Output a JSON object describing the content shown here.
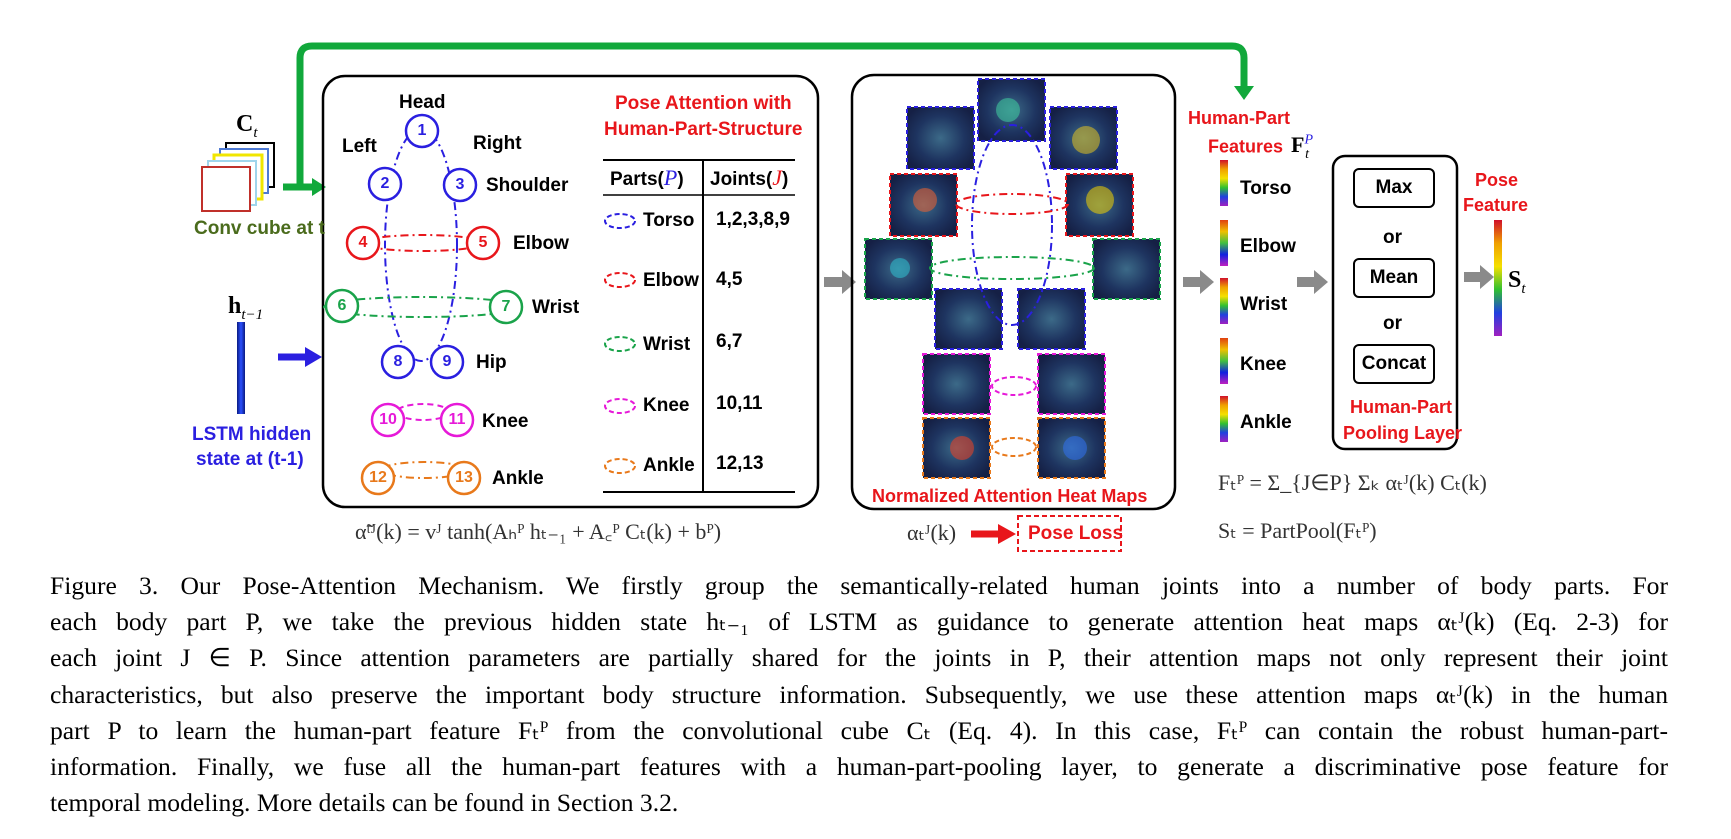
{
  "inputs": {
    "conv_cube_symbol": "C",
    "conv_cube_sub": "t",
    "conv_cube_label": "Conv cube at t",
    "hidden_symbol": "h",
    "hidden_sub": "t−1",
    "hidden_label_line1": "LSTM hidden",
    "hidden_label_line2": "state at (t-1)"
  },
  "skeleton": {
    "head": "Head",
    "left": "Left",
    "right": "Right",
    "joints": [
      "1",
      "2",
      "3",
      "4",
      "5",
      "6",
      "7",
      "8",
      "9",
      "10",
      "11",
      "12",
      "13"
    ],
    "part_labels": [
      "Shoulder",
      "Elbow",
      "Wrist",
      "Hip",
      "Knee",
      "Ankle"
    ]
  },
  "table": {
    "title_line1": "Pose Attention with",
    "title_line2": "Human-Part-Structure",
    "col_parts": "Parts(",
    "col_parts_sym": "P",
    "col_joints": "Joints(",
    "col_joints_sym": "J",
    "rows": [
      {
        "part": "Torso",
        "joints": "1,2,3,8,9",
        "color": "#2a1fe0"
      },
      {
        "part": "Elbow",
        "joints": "4,5",
        "color": "#e8161b"
      },
      {
        "part": "Wrist",
        "joints": "6,7",
        "color": "#1aa34a"
      },
      {
        "part": "Knee",
        "joints": "10,11",
        "color": "#e619d8"
      },
      {
        "part": "Ankle",
        "joints": "12,13",
        "color": "#e8791b"
      }
    ]
  },
  "heatmaps": {
    "label": "Normalized Attention Heat Maps"
  },
  "features": {
    "title_line1": "Human-Part",
    "title_line2": "Features",
    "symbol": "F",
    "sup": "P",
    "sub": "t",
    "items": [
      "Torso",
      "Elbow",
      "Wrist",
      "Knee",
      "Ankle"
    ]
  },
  "pooling": {
    "options": [
      "Max",
      "Mean",
      "Concat"
    ],
    "or": "or",
    "label_line1": "Human-Part",
    "label_line2": "Pooling Layer"
  },
  "pose_feature": {
    "label_line1": "Pose",
    "label_line2": "Feature",
    "symbol": "S",
    "sub": "t"
  },
  "formulas": {
    "attention": "α̃ᵗᴶ(k) = vᴶ tanh(Aₕᴾ hₜ₋₁ + A꜀ᴾ Cₜ(k) + bᴾ)",
    "alpha": "αₜᴶ(k)",
    "pose_loss": "Pose Loss",
    "feature": "Fₜᴾ = Σ_{J∈P} Σₖ αₜᴶ(k) Cₜ(k)",
    "pool": "Sₜ  = PartPool(Fₜᴾ)"
  },
  "caption": {
    "lines": [
      "Figure 3.   Our Pose-Attention Mechanism.  We firstly group the semantically-related human joints into a number of body parts.  For",
      "each body part P, we take the previous hidden state hₜ₋₁ of LSTM as guidance to generate attention heat maps αₜᴶ(k) (Eq. 2-3) for",
      "each joint J ∈ P. Since attention parameters are partially shared for the joints in P, their attention maps not only represent their joint",
      "characteristics, but also preserve the important body structure information. Subsequently, we use these attention maps αₜᴶ(k) in the human",
      "part P to learn the human-part feature Fₜᴾ from the convolutional cube Cₜ (Eq. 4). In this case, Fₜᴾ can contain the robust human-part-",
      "information.  Finally, we fuse all the human-part features with a human-part-pooling layer, to generate a discriminative pose feature for",
      "temporal modeling. More details can be found in Section 3.2."
    ]
  },
  "colors": {
    "blue": "#2a1fe0",
    "red": "#e8161b",
    "green": "#1aa34a",
    "magenta": "#e619d8",
    "orange": "#e8791b",
    "arrow_green": "#11a83b",
    "arrow_gray": "#8a8a8a"
  }
}
